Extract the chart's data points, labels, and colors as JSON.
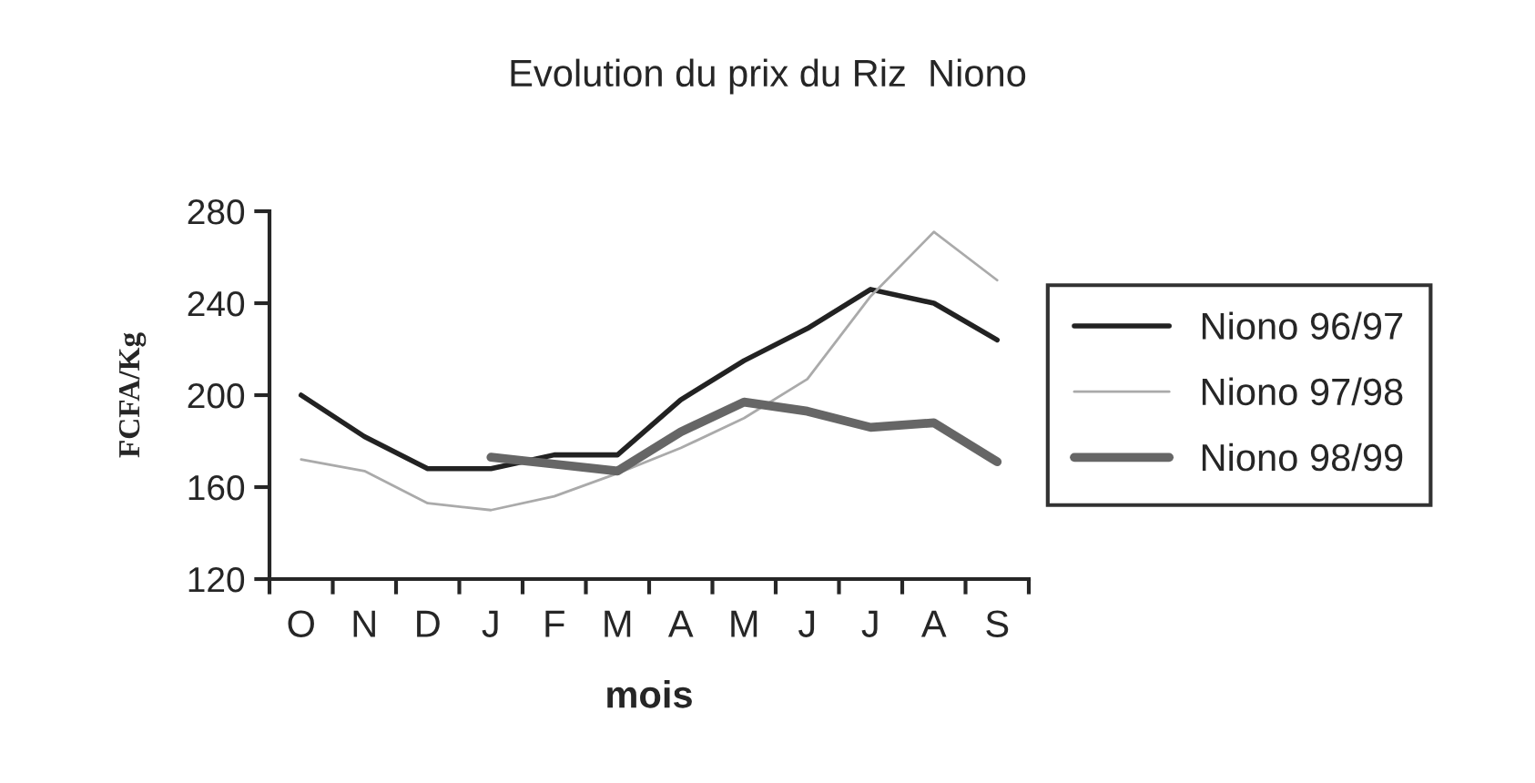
{
  "chart_data": {
    "type": "line",
    "title": "Evolution du prix du Riz  Niono",
    "xlabel": "mois",
    "ylabel": "FCFA/Kg",
    "categories": [
      "O",
      "N",
      "D",
      "J",
      "F",
      "M",
      "A",
      "M",
      "J",
      "J",
      "A",
      "S"
    ],
    "series": [
      {
        "name": "Niono 96/97",
        "color": "#222222",
        "values": [
          200,
          182,
          168,
          168,
          174,
          174,
          198,
          215,
          229,
          246,
          240,
          224
        ]
      },
      {
        "name": "Niono 97/98",
        "color": "#aaaaaa",
        "values": [
          172,
          167,
          153,
          150,
          156,
          166,
          177,
          190,
          207,
          243,
          271,
          250
        ]
      },
      {
        "name": "Niono 98/99",
        "color": "#666666",
        "values": [
          null,
          null,
          null,
          173,
          170,
          167,
          184,
          197,
          193,
          186,
          188,
          171
        ]
      }
    ],
    "ylim": [
      120,
      280
    ],
    "yticks": [
      120,
      160,
      200,
      240,
      280
    ],
    "grid": false,
    "legend": "right",
    "marker": "none",
    "line_style": "solid"
  }
}
